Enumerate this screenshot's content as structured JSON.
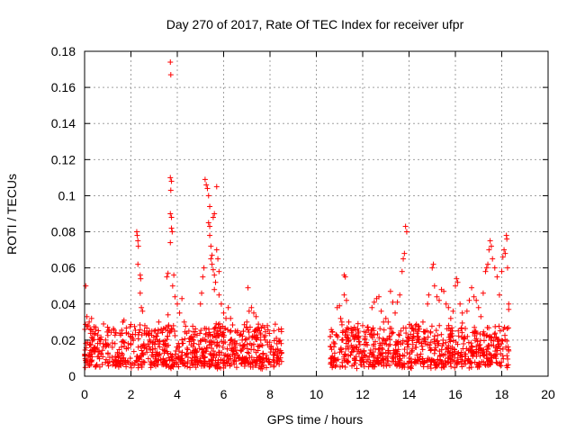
{
  "chart_data": {
    "type": "scatter",
    "title": "Day 270 of 2017, Rate Of TEC Index for receiver ufpr",
    "xlabel": "GPS time / hours",
    "ylabel": "ROTI / TECUs",
    "xlim": [
      0,
      20
    ],
    "ylim": [
      0,
      0.18
    ],
    "x_ticks": [
      0,
      2,
      4,
      6,
      8,
      10,
      12,
      14,
      16,
      18,
      20
    ],
    "x_tick_labels": [
      "0",
      "2",
      "4",
      "6",
      "8",
      "10",
      "12",
      "14",
      "16",
      "18",
      "20"
    ],
    "y_ticks": [
      0,
      0.02,
      0.04,
      0.06,
      0.08,
      0.1,
      0.12,
      0.14,
      0.16,
      0.18
    ],
    "y_tick_labels": [
      "0",
      "0.02",
      "0.04",
      "0.06",
      "0.08",
      "0.1",
      "0.12",
      "0.14",
      "0.16",
      "0.18"
    ],
    "grid": true,
    "marker": "+",
    "series_color": "#ff0000",
    "series": [
      {
        "name": "ROTI",
        "points": [
          [
            0.05,
            0.05
          ],
          [
            0.1,
            0.033
          ],
          [
            0.15,
            0.028
          ],
          [
            0.2,
            0.03
          ],
          [
            0.3,
            0.032
          ],
          [
            0.35,
            0.021
          ],
          [
            0.5,
            0.015
          ],
          [
            0.8,
            0.018
          ],
          [
            1.2,
            0.016
          ],
          [
            1.6,
            0.019
          ],
          [
            1.65,
            0.03
          ],
          [
            1.7,
            0.031
          ],
          [
            1.8,
            0.024
          ],
          [
            2.0,
            0.018
          ],
          [
            2.25,
            0.08
          ],
          [
            2.27,
            0.078
          ],
          [
            2.3,
            0.075
          ],
          [
            2.32,
            0.072
          ],
          [
            2.3,
            0.062
          ],
          [
            2.4,
            0.056
          ],
          [
            2.42,
            0.054
          ],
          [
            2.4,
            0.046
          ],
          [
            2.45,
            0.038
          ],
          [
            2.5,
            0.036
          ],
          [
            2.6,
            0.028
          ],
          [
            2.8,
            0.02
          ],
          [
            3.0,
            0.025
          ],
          [
            3.2,
            0.03
          ],
          [
            3.3,
            0.025
          ],
          [
            3.5,
            0.027
          ],
          [
            3.55,
            0.055
          ],
          [
            3.6,
            0.057
          ],
          [
            3.6,
            0.034
          ],
          [
            3.7,
            0.174
          ],
          [
            3.72,
            0.167
          ],
          [
            3.7,
            0.11
          ],
          [
            3.75,
            0.108
          ],
          [
            3.72,
            0.103
          ],
          [
            3.7,
            0.09
          ],
          [
            3.75,
            0.088
          ],
          [
            3.75,
            0.082
          ],
          [
            3.78,
            0.08
          ],
          [
            3.7,
            0.074
          ],
          [
            3.85,
            0.056
          ],
          [
            3.8,
            0.05
          ],
          [
            3.9,
            0.044
          ],
          [
            4.0,
            0.04
          ],
          [
            4.1,
            0.035
          ],
          [
            4.2,
            0.043
          ],
          [
            4.3,
            0.03
          ],
          [
            4.5,
            0.025
          ],
          [
            4.7,
            0.02
          ],
          [
            5.0,
            0.04
          ],
          [
            5.05,
            0.046
          ],
          [
            5.1,
            0.055
          ],
          [
            5.15,
            0.06
          ],
          [
            5.2,
            0.109
          ],
          [
            5.25,
            0.106
          ],
          [
            5.3,
            0.104
          ],
          [
            5.35,
            0.1
          ],
          [
            5.4,
            0.094
          ],
          [
            5.35,
            0.085
          ],
          [
            5.4,
            0.083
          ],
          [
            5.4,
            0.078
          ],
          [
            5.45,
            0.072
          ],
          [
            5.5,
            0.067
          ],
          [
            5.45,
            0.065
          ],
          [
            5.5,
            0.062
          ],
          [
            5.55,
            0.059
          ],
          [
            5.6,
            0.056
          ],
          [
            5.65,
            0.052
          ],
          [
            5.6,
            0.048
          ],
          [
            5.7,
            0.105
          ],
          [
            5.6,
            0.09
          ],
          [
            5.55,
            0.088
          ],
          [
            5.7,
            0.07
          ],
          [
            5.75,
            0.065
          ],
          [
            5.8,
            0.058
          ],
          [
            5.8,
            0.045
          ],
          [
            5.9,
            0.04
          ],
          [
            6.0,
            0.035
          ],
          [
            6.1,
            0.032
          ],
          [
            6.2,
            0.038
          ],
          [
            6.3,
            0.032
          ],
          [
            6.5,
            0.025
          ],
          [
            6.8,
            0.02
          ],
          [
            7.0,
            0.03
          ],
          [
            7.05,
            0.049
          ],
          [
            7.1,
            0.036
          ],
          [
            7.2,
            0.038
          ],
          [
            7.3,
            0.035
          ],
          [
            7.4,
            0.033
          ],
          [
            7.5,
            0.027
          ],
          [
            7.6,
            0.02
          ],
          [
            7.8,
            0.02
          ],
          [
            8.0,
            0.016
          ],
          [
            8.3,
            0.018
          ],
          [
            8.5,
            0.013
          ],
          [
            10.6,
            0.022
          ],
          [
            10.8,
            0.018
          ],
          [
            10.9,
            0.038
          ],
          [
            11.0,
            0.039
          ],
          [
            11.05,
            0.032
          ],
          [
            11.1,
            0.03
          ],
          [
            11.15,
            0.025
          ],
          [
            11.2,
            0.056
          ],
          [
            11.25,
            0.055
          ],
          [
            11.2,
            0.045
          ],
          [
            11.3,
            0.042
          ],
          [
            11.4,
            0.03
          ],
          [
            11.6,
            0.022
          ],
          [
            11.8,
            0.024
          ],
          [
            12.0,
            0.028
          ],
          [
            12.2,
            0.027
          ],
          [
            12.4,
            0.038
          ],
          [
            12.5,
            0.041
          ],
          [
            12.6,
            0.043
          ],
          [
            12.7,
            0.044
          ],
          [
            12.8,
            0.036
          ],
          [
            12.9,
            0.03
          ],
          [
            13.0,
            0.032
          ],
          [
            13.1,
            0.03
          ],
          [
            13.2,
            0.047
          ],
          [
            13.3,
            0.041
          ],
          [
            13.4,
            0.035
          ],
          [
            13.5,
            0.041
          ],
          [
            13.6,
            0.045
          ],
          [
            13.7,
            0.058
          ],
          [
            13.75,
            0.065
          ],
          [
            13.8,
            0.068
          ],
          [
            13.85,
            0.083
          ],
          [
            13.9,
            0.08
          ],
          [
            13.95,
            0.005
          ],
          [
            14.0,
            0.01
          ],
          [
            14.1,
            0.028
          ],
          [
            14.2,
            0.025
          ],
          [
            14.4,
            0.022
          ],
          [
            14.6,
            0.03
          ],
          [
            14.8,
            0.04
          ],
          [
            14.85,
            0.045
          ],
          [
            15.0,
            0.06
          ],
          [
            15.05,
            0.062
          ],
          [
            15.1,
            0.05
          ],
          [
            15.2,
            0.044
          ],
          [
            15.3,
            0.042
          ],
          [
            15.4,
            0.048
          ],
          [
            15.5,
            0.047
          ],
          [
            15.6,
            0.04
          ],
          [
            15.7,
            0.038
          ],
          [
            15.8,
            0.032
          ],
          [
            15.9,
            0.036
          ],
          [
            16.0,
            0.05
          ],
          [
            16.05,
            0.054
          ],
          [
            16.1,
            0.052
          ],
          [
            16.2,
            0.04
          ],
          [
            16.3,
            0.035
          ],
          [
            16.5,
            0.036
          ],
          [
            16.6,
            0.042
          ],
          [
            16.7,
            0.049
          ],
          [
            16.8,
            0.044
          ],
          [
            16.9,
            0.042
          ],
          [
            17.0,
            0.038
          ],
          [
            17.1,
            0.033
          ],
          [
            17.2,
            0.046
          ],
          [
            17.3,
            0.058
          ],
          [
            17.35,
            0.06
          ],
          [
            17.4,
            0.062
          ],
          [
            17.45,
            0.07
          ],
          [
            17.5,
            0.075
          ],
          [
            17.55,
            0.072
          ],
          [
            17.6,
            0.065
          ],
          [
            17.7,
            0.06
          ],
          [
            17.8,
            0.055
          ],
          [
            17.9,
            0.045
          ],
          [
            18.0,
            0.058
          ],
          [
            18.05,
            0.066
          ],
          [
            18.1,
            0.07
          ],
          [
            18.15,
            0.068
          ],
          [
            18.2,
            0.078
          ],
          [
            18.22,
            0.076
          ],
          [
            18.25,
            0.06
          ],
          [
            18.3,
            0.04
          ],
          [
            18.3,
            0.037
          ],
          [
            18.3,
            0.014
          ]
        ]
      }
    ]
  }
}
